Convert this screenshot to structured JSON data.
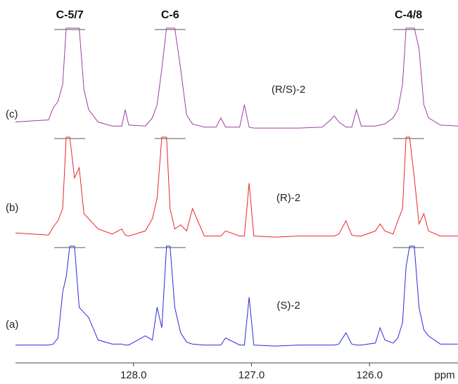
{
  "chart_data": {
    "type": "line",
    "x": [
      129.0,
      128.72,
      128.68,
      128.64,
      128.6,
      128.57,
      128.54,
      128.5,
      128.46,
      128.42,
      128.38,
      128.3,
      128.18,
      128.1,
      128.07,
      128.04,
      127.9,
      127.84,
      127.8,
      127.76,
      127.72,
      127.69,
      127.65,
      127.6,
      127.55,
      127.5,
      127.4,
      127.3,
      127.26,
      127.22,
      127.1,
      127.06,
      127.02,
      126.98,
      126.8,
      126.6,
      126.4,
      126.33,
      126.3,
      126.26,
      126.2,
      126.15,
      126.11,
      126.07,
      125.95,
      125.91,
      125.87,
      125.8,
      125.76,
      125.72,
      125.69,
      125.66,
      125.62,
      125.58,
      125.54,
      125.5,
      125.4,
      125.25
    ],
    "series": [
      {
        "panel": "(c)",
        "name": "(R/S)-2",
        "color": "#a03ca0",
        "values": [
          8,
          10,
          22,
          28,
          45,
          100,
          100,
          100,
          100,
          40,
          20,
          8,
          4,
          4,
          20,
          5,
          4,
          12,
          25,
          60,
          100,
          100,
          100,
          60,
          15,
          6,
          3,
          3,
          12,
          3,
          3,
          25,
          3,
          2,
          2,
          2,
          3,
          10,
          14,
          8,
          3,
          3,
          20,
          4,
          4,
          5,
          6,
          12,
          20,
          45,
          100,
          100,
          100,
          80,
          25,
          12,
          5,
          4
        ]
      },
      {
        "panel": "(b)",
        "name": "(R)-2",
        "color": "#e8262a",
        "values": [
          6,
          4,
          12,
          18,
          30,
          100,
          100,
          60,
          70,
          25,
          20,
          10,
          5,
          10,
          4,
          3,
          8,
          20,
          40,
          100,
          100,
          30,
          10,
          14,
          8,
          30,
          3,
          3,
          3,
          8,
          3,
          3,
          55,
          3,
          2,
          3,
          3,
          3,
          3,
          5,
          18,
          4,
          3,
          3,
          8,
          15,
          8,
          5,
          18,
          30,
          100,
          100,
          60,
          15,
          25,
          8,
          3,
          3
        ]
      },
      {
        "panel": "(a)",
        "name": "(S)-2",
        "color": "#2a2ae0",
        "values": [
          3,
          3,
          4,
          10,
          55,
          70,
          100,
          100,
          40,
          35,
          30,
          8,
          4,
          4,
          3,
          3,
          12,
          8,
          40,
          20,
          100,
          100,
          40,
          15,
          6,
          4,
          3,
          3,
          3,
          10,
          3,
          3,
          50,
          3,
          2,
          3,
          3,
          3,
          3,
          4,
          15,
          4,
          3,
          3,
          5,
          20,
          8,
          5,
          10,
          25,
          80,
          100,
          100,
          40,
          18,
          12,
          4,
          4
        ]
      }
    ],
    "annotations": [
      {
        "text": "C-5/7",
        "x": 128.54
      },
      {
        "text": "C-6",
        "x": 127.69
      },
      {
        "text": "C-4/8",
        "x": 125.67
      }
    ],
    "xlim": [
      129.0,
      125.25
    ],
    "xticks": [
      {
        "value": 128,
        "label": "128.0"
      },
      {
        "value": 127,
        "label": "127.0"
      },
      {
        "value": 126,
        "label": "126.0"
      }
    ],
    "xlabel": "ppm"
  }
}
